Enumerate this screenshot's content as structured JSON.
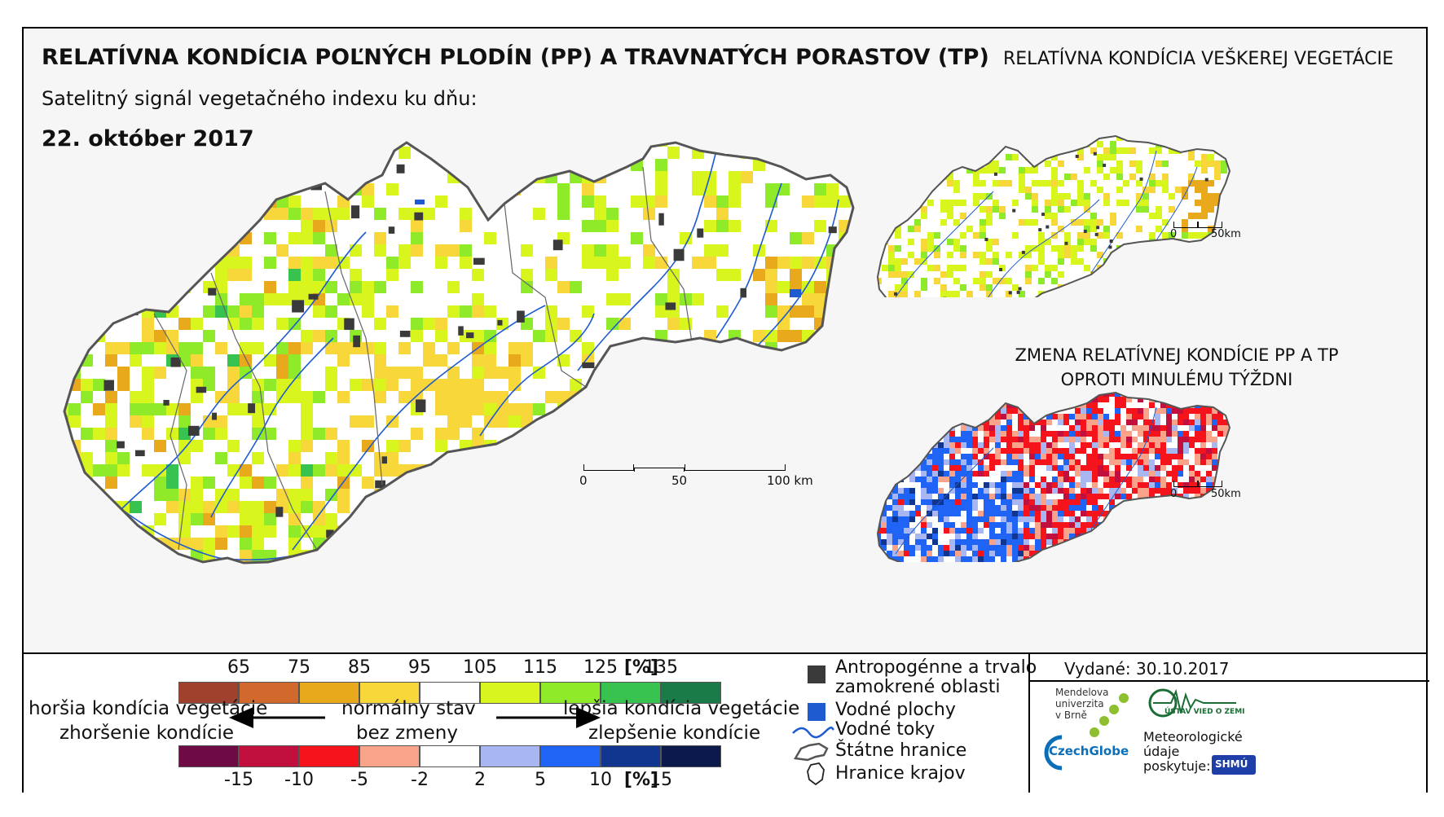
{
  "header": {
    "title": "RELATÍVNA KONDÍCIA POĽNÝCH PLODÍN (PP) A TRAVNATÝCH PORASTOV (TP)",
    "subtitle": "Satelitný signál vegetačného indexu ku dňu:",
    "date": "22. október 2017"
  },
  "inset_top": {
    "title": "RELATÍVNA KONDÍCIA VEŠKEREJ VEGETÁCIE",
    "scale": [
      "0",
      "50km"
    ]
  },
  "inset_bottom": {
    "title_line1": "ZMENA RELATÍVNEJ KONDÍCIE PP A TP",
    "title_line2": "OPROTI MINULÉMU TÝŽDNI",
    "scale": [
      "0",
      "50km"
    ]
  },
  "main_scale": [
    "0",
    "50",
    "100 km"
  ],
  "legend": {
    "top_values": [
      "65",
      "75",
      "85",
      "95",
      "105",
      "115",
      "125",
      "135"
    ],
    "top_unit": "[%]",
    "top_colors": [
      "#a0412d",
      "#d2692c",
      "#e8a91c",
      "#f8d73a",
      "#ffffff",
      "#d9f51e",
      "#8fea2a",
      "#38c24f",
      "#1a7a48"
    ],
    "bottom_values": [
      "-15",
      "-10",
      "-5",
      "-2",
      "2",
      "5",
      "10",
      "15"
    ],
    "bottom_unit": "[%]",
    "bottom_colors": [
      "#6e0a44",
      "#c2103e",
      "#f5141c",
      "#f9a48a",
      "#ffffff",
      "#a8b7f2",
      "#1f64f5",
      "#10368f",
      "#0b1a4a"
    ],
    "worse_condition": "horšia kondícia vegetácie",
    "worsening": "zhoršenie kondície",
    "normal": "normálny stav",
    "no_change": "bez zmeny",
    "better_condition": "lepšia kondícia vegetácie",
    "improvement": "zlepšenie kondície"
  },
  "symbols": {
    "anthropogenic_line1": "Antropogénne a trvalo",
    "anthropogenic_line2": "zamokrené oblasti",
    "water_bodies": "Vodné plochy",
    "rivers": "Vodné toky",
    "state_borders": "Štátne hranice",
    "region_borders": "Hranice krajov"
  },
  "credits": {
    "issued": "Vydané: 30.10.2017",
    "mendel_line1": "Mendelova",
    "mendel_line2": "univerzita",
    "mendel_line3": "v Brně",
    "czechglobe": "CzechGlobe",
    "uvz": "ÚSTAV VIED O ZEMI",
    "met_line1": "Meteorologické",
    "met_line2": "údaje",
    "met_line3": "poskytuje:",
    "shmu": "SHMÚ"
  },
  "colors": {
    "anthropogenic": "#3a3a3a",
    "water": "#1e5ad0",
    "river": "#1e5ad0"
  }
}
